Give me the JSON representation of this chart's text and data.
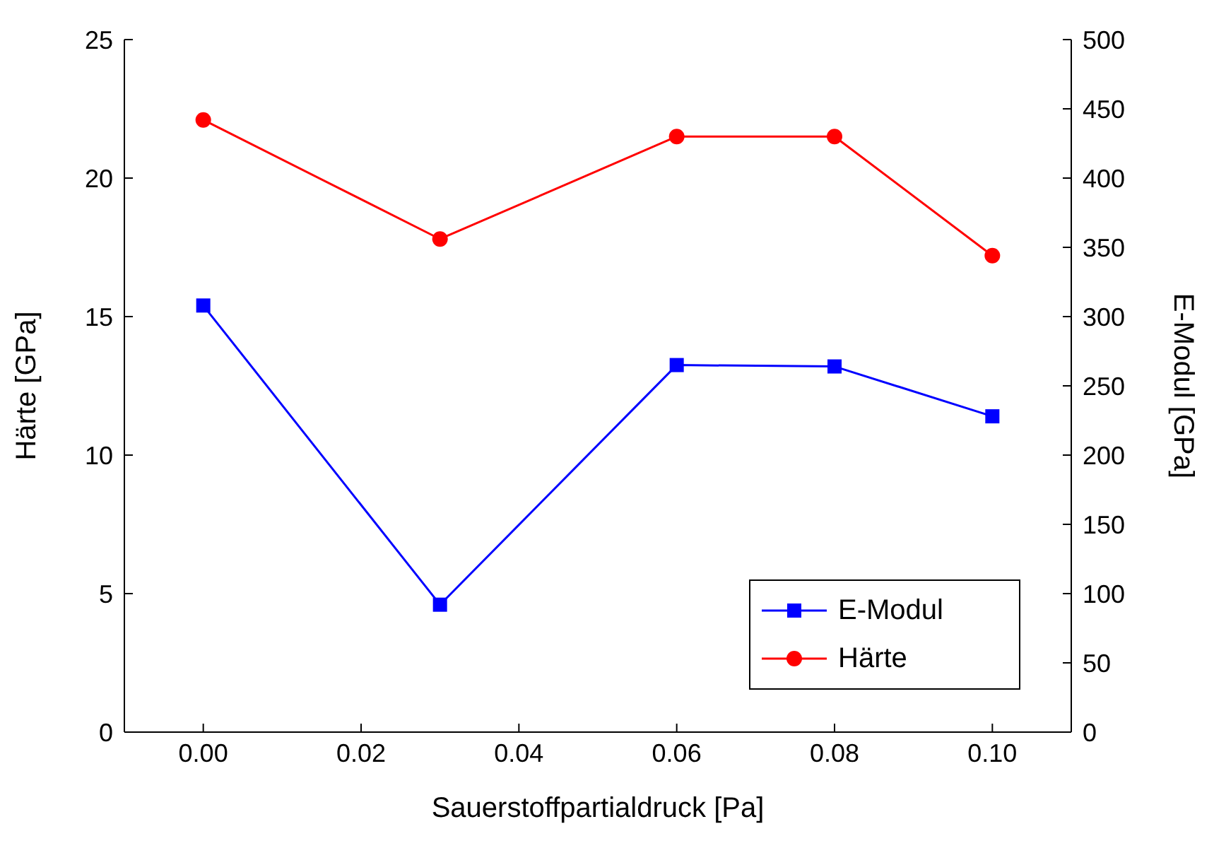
{
  "chart_data": {
    "type": "line",
    "xlabel": "Sauerstoffpartialdruck [Pa]",
    "ylabel": "Härte [GPa]",
    "y2label": "E-Modul [GPa]",
    "x": [
      0,
      0.03,
      0.06,
      0.08,
      0.1
    ],
    "series": [
      {
        "name": "E-Modul",
        "color": "#0000ff",
        "marker": "square",
        "axis": "y2",
        "values": [
          308,
          92,
          265,
          264,
          228
        ]
      },
      {
        "name": "Härte",
        "color": "#ff0000",
        "marker": "circle",
        "values": [
          22.1,
          17.8,
          21.5,
          21.5,
          17.2
        ]
      }
    ],
    "xlim": [
      -0.01,
      0.11
    ],
    "xticks": [
      {
        "value": 0,
        "label": "0.00"
      },
      {
        "value": 0.02,
        "label": "0.02"
      },
      {
        "value": 0.04,
        "label": "0.04"
      },
      {
        "value": 0.06,
        "label": "0.06"
      },
      {
        "value": 0.08,
        "label": "0.08"
      },
      {
        "value": 0.1,
        "label": "0.10"
      }
    ],
    "ylim": [
      0,
      25
    ],
    "yticks": [
      0,
      5,
      10,
      15,
      20,
      25
    ],
    "y2lim": [
      0,
      500
    ],
    "y2ticks": [
      0,
      50,
      100,
      150,
      200,
      250,
      300,
      350,
      400,
      450,
      500
    ],
    "grid": false,
    "legend": "bottom right"
  }
}
